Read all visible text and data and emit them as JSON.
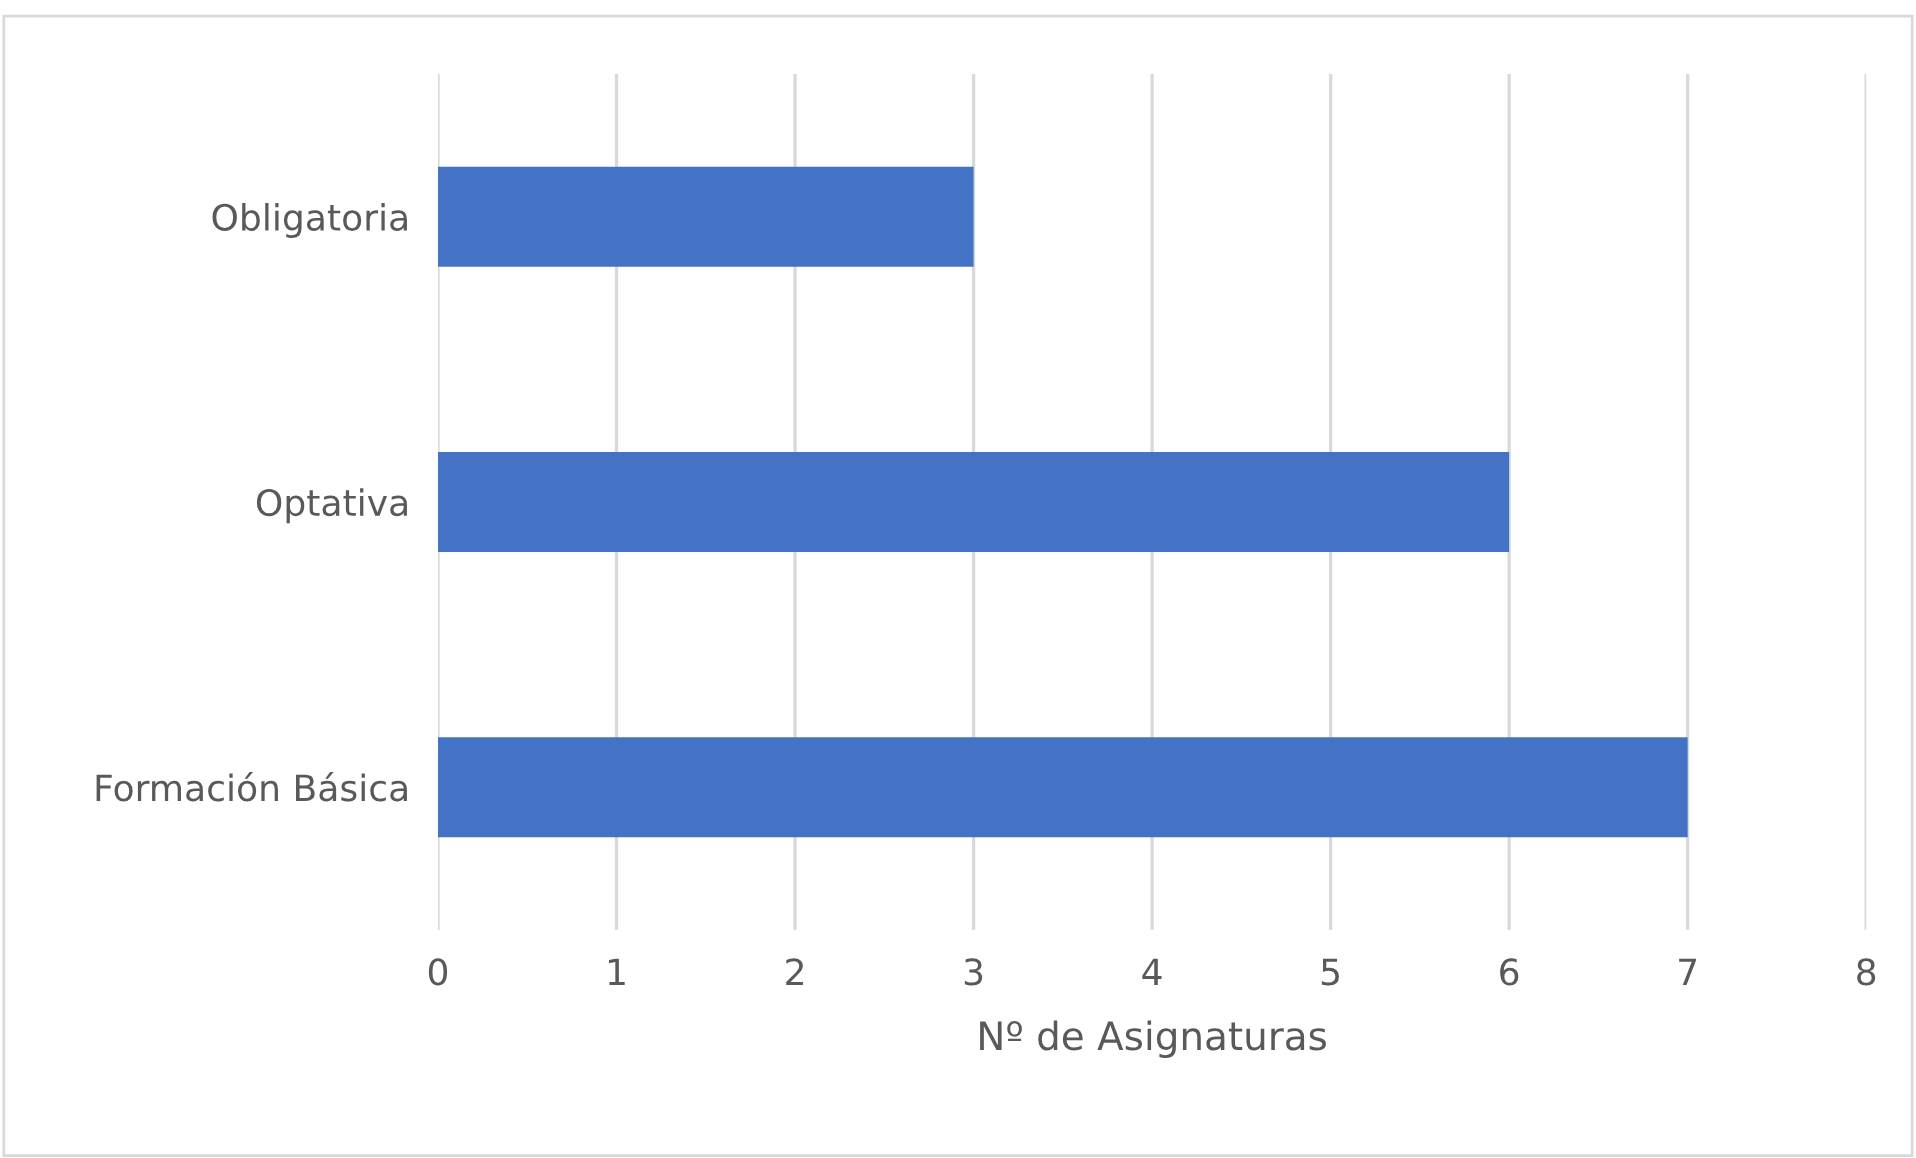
{
  "chart_data": {
    "type": "bar",
    "orientation": "horizontal",
    "xlabel": "Nº de Asignaturas",
    "categories": [
      "Obligatoria",
      "Optativa",
      "Formación Básica"
    ],
    "values": [
      3,
      6,
      7
    ],
    "color": "#4472c4",
    "xlim": [
      0,
      8
    ],
    "xticks": [
      0,
      1,
      2,
      3,
      4,
      5,
      6,
      7,
      8
    ],
    "grid": "x"
  }
}
